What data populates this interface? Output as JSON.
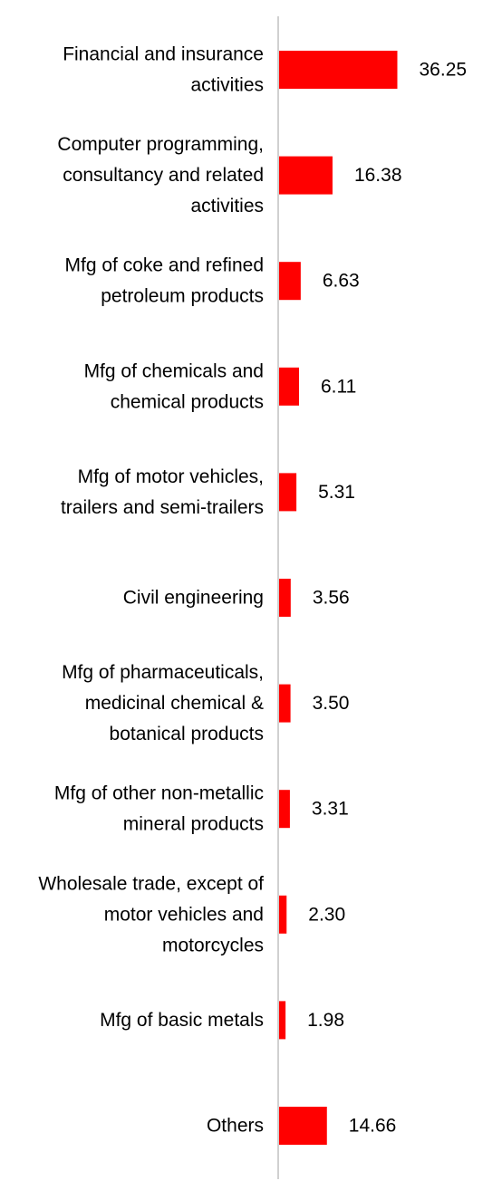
{
  "chart_data": {
    "type": "bar",
    "orientation": "horizontal",
    "categories": [
      "Financial and insurance activities",
      "Computer programming, consultancy and related activities",
      "Mfg of coke and refined petroleum products",
      "Mfg of chemicals and chemical products",
      "Mfg of motor vehicles, trailers and semi-trailers",
      "Civil engineering",
      "Mfg of pharmaceuticals, medicinal chemical & botanical products",
      "Mfg of other non-metallic mineral products",
      "Wholesale trade, except of motor vehicles and motorcycles",
      "Mfg of basic metals",
      "Others"
    ],
    "category_lines": [
      [
        "Financial and insurance",
        "activities"
      ],
      [
        "Computer programming,",
        "consultancy and related",
        "activities"
      ],
      [
        "Mfg of coke and refined",
        "petroleum products"
      ],
      [
        "Mfg of chemicals and",
        "chemical products"
      ],
      [
        "Mfg of motor vehicles,",
        "trailers and semi-trailers"
      ],
      [
        "Civil engineering"
      ],
      [
        "Mfg of pharmaceuticals,",
        "medicinal chemical &",
        "botanical products"
      ],
      [
        "Mfg of other non-metallic",
        "mineral products"
      ],
      [
        "Wholesale trade, except of",
        "motor vehicles and",
        "motorcycles"
      ],
      [
        "Mfg of basic metals"
      ],
      [
        "Others"
      ]
    ],
    "values": [
      36.25,
      16.38,
      6.63,
      6.11,
      5.31,
      3.56,
      3.5,
      3.31,
      2.3,
      1.98,
      14.66
    ],
    "value_labels": [
      "36.25",
      "16.38",
      "6.63",
      "6.11",
      "5.31",
      "3.56",
      "3.50",
      "3.31",
      "2.30",
      "1.98",
      "14.66"
    ],
    "bar_color": "#ff0000",
    "axis_color": "#d0d0d0",
    "grid": false,
    "legend": "none",
    "title": "",
    "xlabel": "",
    "ylabel": ""
  }
}
